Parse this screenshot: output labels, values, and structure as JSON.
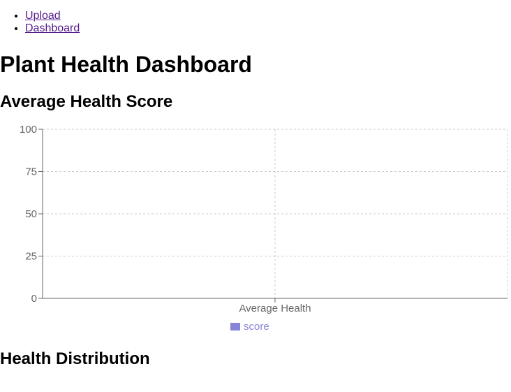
{
  "nav": {
    "items": [
      {
        "label": "Upload"
      },
      {
        "label": "Dashboard"
      }
    ]
  },
  "page": {
    "title": "Plant Health Dashboard",
    "sections": [
      {
        "heading": "Average Health Score"
      },
      {
        "heading": "Health Distribution"
      }
    ]
  },
  "chart_data": {
    "type": "bar",
    "categories": [
      "Average Health"
    ],
    "series": [
      {
        "name": "score",
        "values": [
          0
        ],
        "color": "#8884d8"
      }
    ],
    "yticks": [
      0,
      25,
      50,
      75,
      100
    ],
    "ylim": [
      0,
      100
    ],
    "grid": true,
    "legend_position": "bottom"
  }
}
